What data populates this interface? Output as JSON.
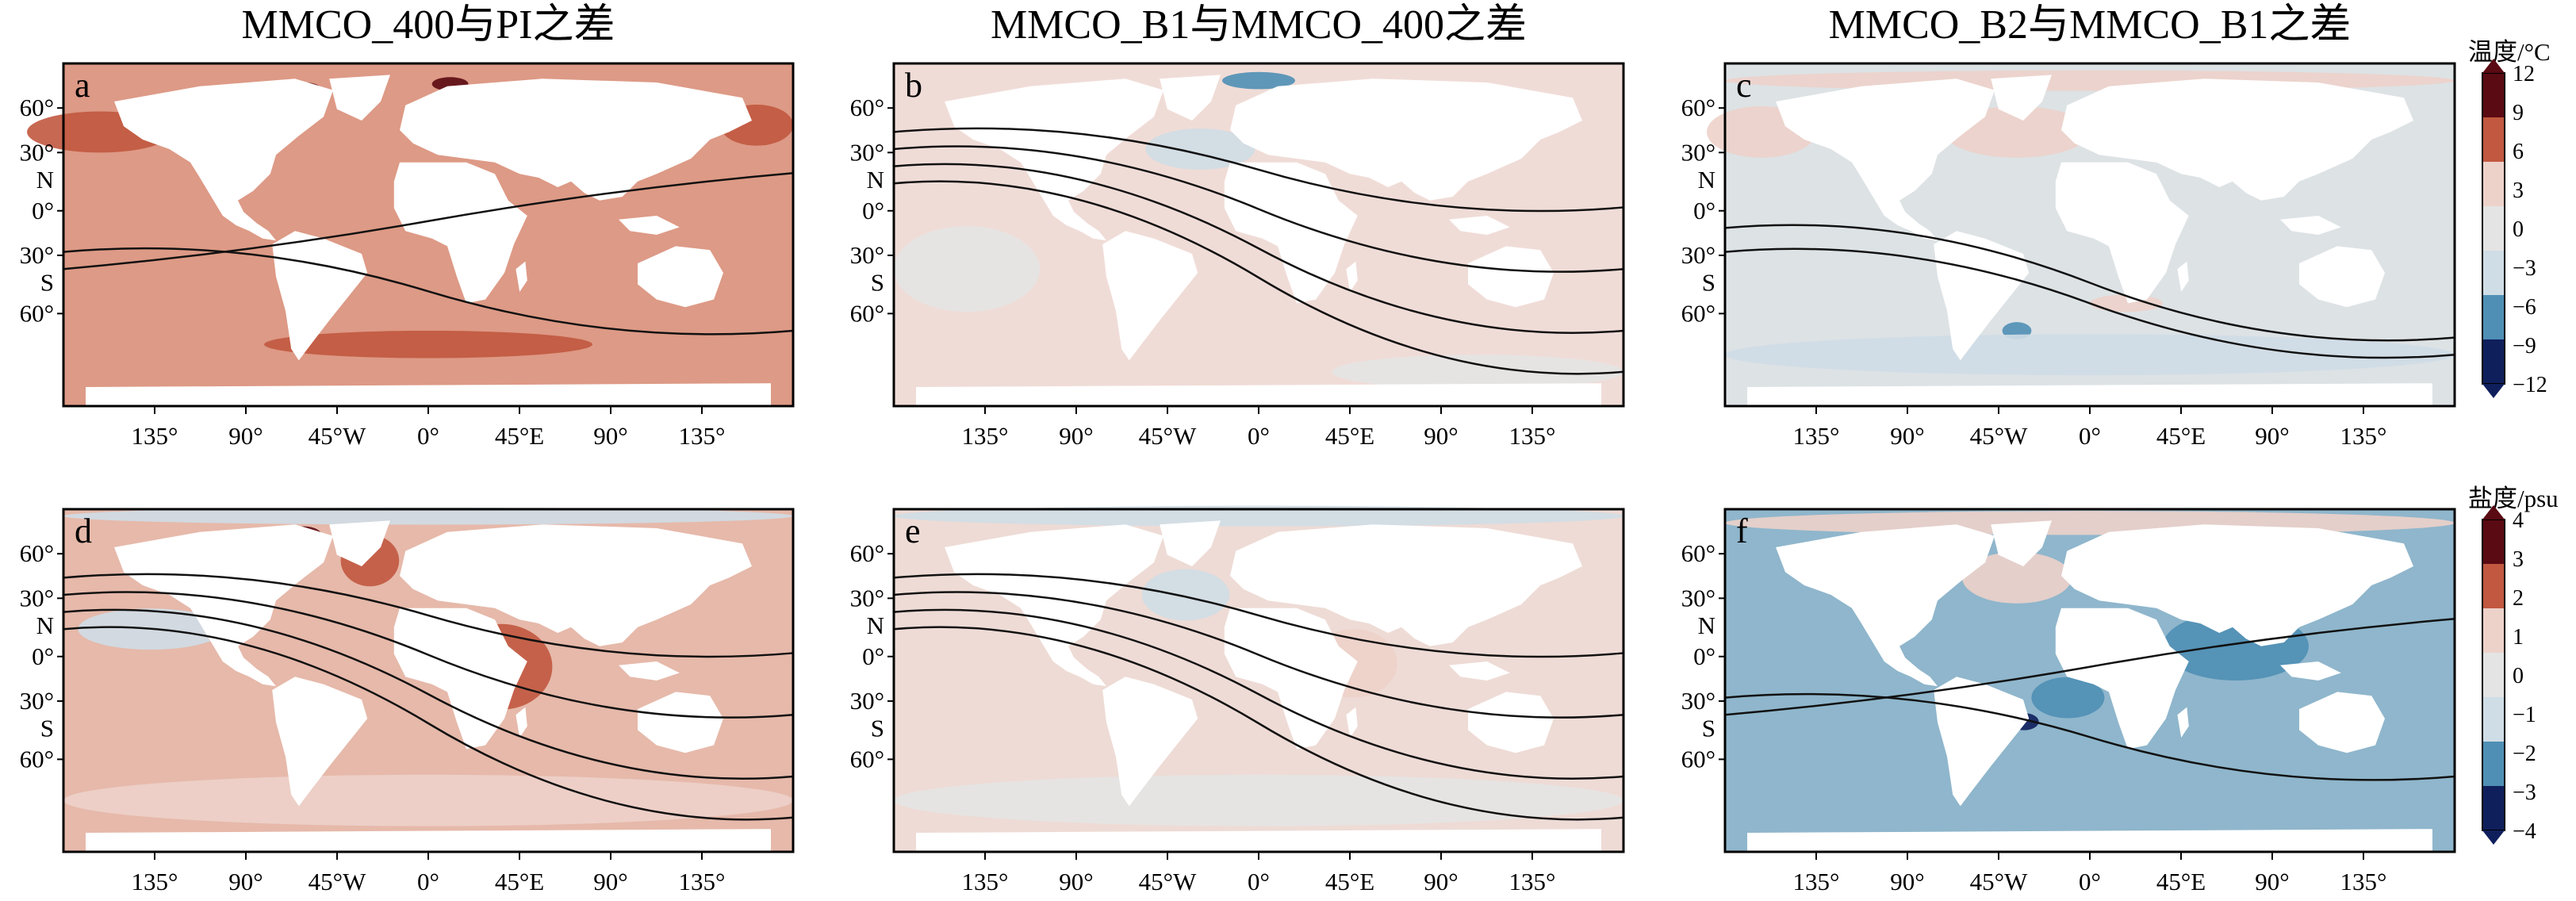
{
  "column_titles": [
    "MMCO_400与PI之差",
    "MMCO_B1与MMCO_400之差",
    "MMCO_B2与MMCO_B1之差"
  ],
  "lon_ticks": [
    "135°",
    "90°",
    "45°W",
    "0°",
    "45°E",
    "90°",
    "135°"
  ],
  "lat_ticks": [
    "60°",
    "30°",
    "N",
    "0°",
    "30°",
    "S",
    "60°"
  ],
  "panels": [
    {
      "id": "a",
      "variable": "temperature",
      "base": "#dd9a86",
      "contour_mode": "few"
    },
    {
      "id": "b",
      "variable": "temperature",
      "base": "#f0dcd7",
      "contour_mode": "many"
    },
    {
      "id": "c",
      "variable": "temperature",
      "base": "#dde2e5",
      "contour_mode": "mid"
    },
    {
      "id": "d",
      "variable": "salinity",
      "base": "#e6b9aa",
      "contour_mode": "many"
    },
    {
      "id": "e",
      "variable": "salinity",
      "base": "#eedbd5",
      "contour_mode": "many"
    },
    {
      "id": "f",
      "variable": "salinity",
      "base": "#8fb6cc",
      "contour_mode": "few"
    }
  ],
  "colorbars": {
    "temperature": {
      "title": "温度/°C",
      "ticks": [
        "12",
        "9",
        "6",
        "3",
        "0",
        "−3",
        "−6",
        "−9",
        "−12"
      ]
    },
    "salinity": {
      "title": "盐度/psu",
      "ticks": [
        "4",
        "3",
        "2",
        "1",
        "0",
        "−1",
        "−2",
        "−3",
        "−4"
      ]
    }
  },
  "colors": {
    "warm_dark": "#5a0a12",
    "warm_mid": "#c1583f",
    "warm_light": "#edd2ca",
    "neutral": "#e4e4e4",
    "cool_light": "#cfdde6",
    "cool_mid": "#4f8fb5",
    "cool_dark": "#0f1f5c",
    "land": "#ffffff"
  }
}
